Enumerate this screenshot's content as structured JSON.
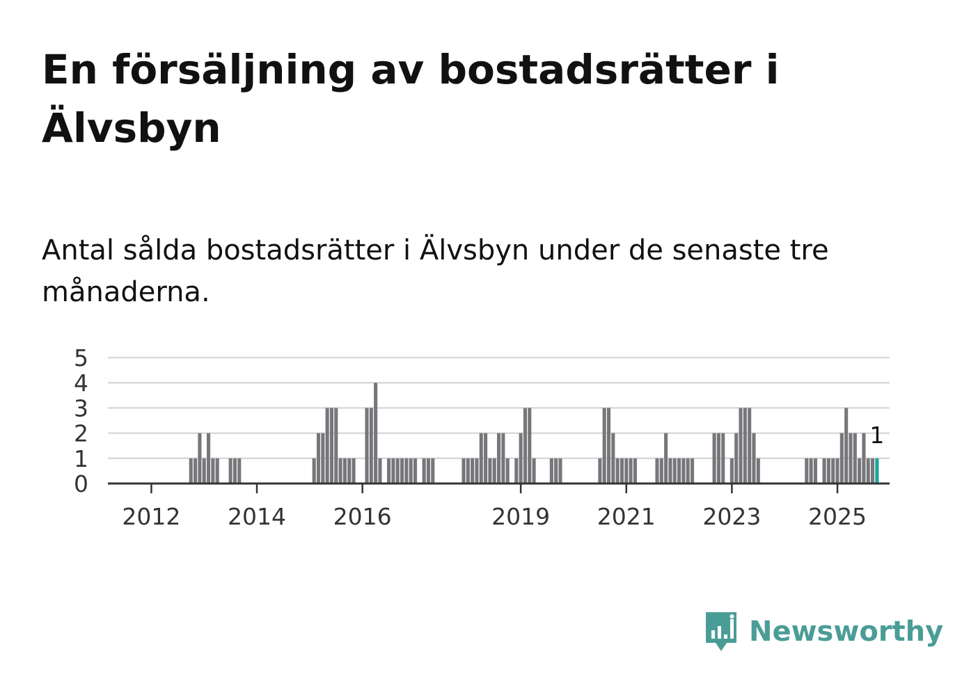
{
  "title": "En försäljning av bostadsrätter i Älvsbyn",
  "subtitle": "Antal sålda bostadsrätter i Älvsbyn under de senaste tre månaderna.",
  "brand": {
    "name": "Newsworthy"
  },
  "colors": {
    "bar": "#77767b",
    "highlight": "#1aa39b",
    "grid": "#d9d9d9",
    "axis": "#333333",
    "tick_text": "#333333",
    "brand": "#4a9d96"
  },
  "chart_data": {
    "type": "bar",
    "title": "Antal sålda bostadsrätter i Älvsbyn under de senaste tre månaderna.",
    "xlabel": "",
    "ylabel": "",
    "ylim": [
      0,
      5
    ],
    "yticks": [
      0,
      1,
      2,
      3,
      4,
      5
    ],
    "grid": true,
    "legend": "none",
    "x_start": "2011-06",
    "x_range": [
      "2011-06",
      "2025-12"
    ],
    "x_ticks": [
      {
        "label": "2012",
        "date": "2012-03"
      },
      {
        "label": "2014",
        "date": "2014-03"
      },
      {
        "label": "2016",
        "date": "2016-03"
      },
      {
        "label": "2019",
        "date": "2019-03"
      },
      {
        "label": "2021",
        "date": "2021-03"
      },
      {
        "label": "2023",
        "date": "2023-03"
      },
      {
        "label": "2025",
        "date": "2025-03"
      }
    ],
    "values": [
      0,
      0,
      0,
      0,
      0,
      0,
      0,
      0,
      0,
      0,
      0,
      0,
      0,
      0,
      0,
      0,
      0,
      0,
      1,
      1,
      2,
      1,
      2,
      1,
      1,
      0,
      0,
      1,
      1,
      1,
      0,
      0,
      0,
      0,
      0,
      0,
      0,
      0,
      0,
      0,
      0,
      0,
      0,
      0,
      0,
      0,
      1,
      2,
      2,
      3,
      3,
      3,
      1,
      1,
      1,
      1,
      0,
      0,
      3,
      3,
      4,
      1,
      0,
      1,
      1,
      1,
      1,
      1,
      1,
      1,
      0,
      1,
      1,
      1,
      0,
      0,
      0,
      0,
      0,
      0,
      1,
      1,
      1,
      1,
      2,
      2,
      1,
      1,
      2,
      2,
      1,
      0,
      1,
      2,
      3,
      3,
      1,
      0,
      0,
      0,
      1,
      1,
      1,
      0,
      0,
      0,
      0,
      0,
      0,
      0,
      0,
      1,
      3,
      3,
      2,
      1,
      1,
      1,
      1,
      1,
      0,
      0,
      0,
      0,
      1,
      1,
      2,
      1,
      1,
      1,
      1,
      1,
      1,
      0,
      0,
      0,
      0,
      2,
      2,
      2,
      0,
      1,
      2,
      3,
      3,
      3,
      2,
      1,
      0,
      0,
      0,
      0,
      0,
      0,
      0,
      0,
      0,
      0,
      1,
      1,
      1,
      0,
      1,
      1,
      1,
      1,
      2,
      3,
      2,
      2,
      1,
      2,
      1,
      1,
      1
    ],
    "last_value_label": "1"
  }
}
